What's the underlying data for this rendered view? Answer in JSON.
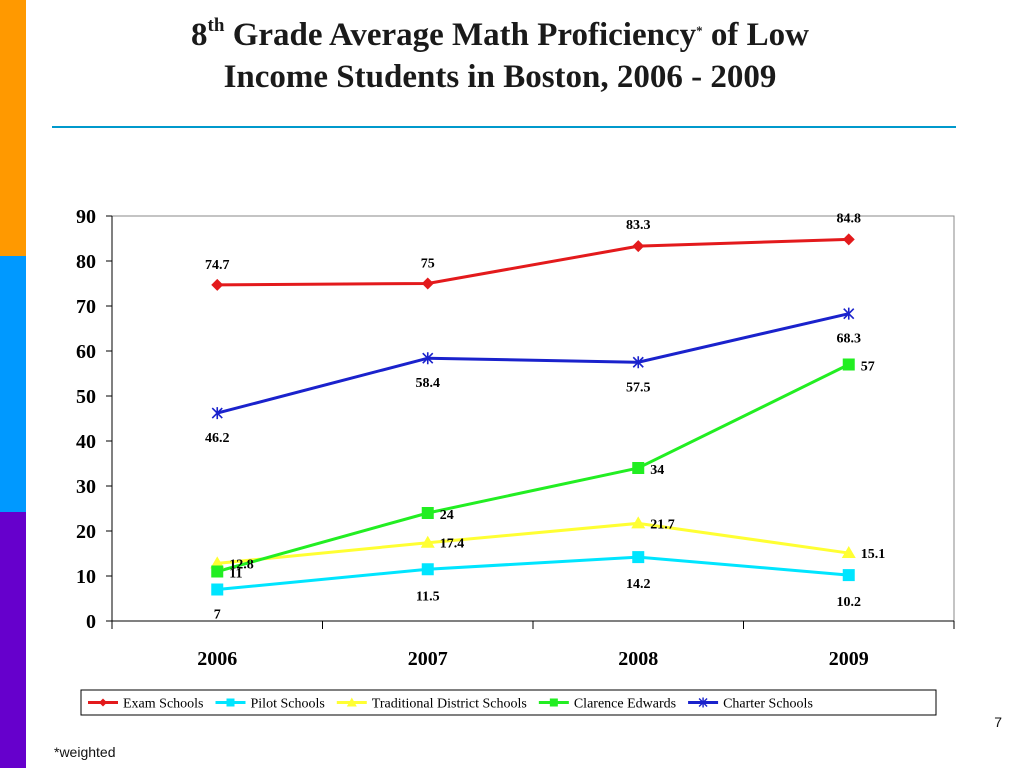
{
  "sidebar": {
    "colors": [
      "#FF9900",
      "#0099FF",
      "#6600CC"
    ]
  },
  "title": {
    "lead": "8",
    "th": "th",
    "mid": " Grade Average Math Proficiency",
    "asterisk": "*",
    "tail1": " of Low",
    "line2": "Income Students in Boston, 2006 - 2009"
  },
  "rule_color": "#0099CC",
  "chart_data": {
    "type": "line",
    "categories": [
      "2006",
      "2007",
      "2008",
      "2009"
    ],
    "ylim": [
      0,
      90
    ],
    "yticks": [
      "0",
      "10",
      "20",
      "30",
      "40",
      "50",
      "60",
      "70",
      "80",
      "90"
    ],
    "grid": false,
    "legend_position": "bottom",
    "series": [
      {
        "name": "Exam Schools",
        "values": [
          74.7,
          75,
          83.3,
          84.8
        ],
        "labels": [
          "74.7",
          "75",
          "83.3",
          "84.8"
        ],
        "color": "#E31A1C",
        "marker": "diamond"
      },
      {
        "name": "Pilot Schools",
        "values": [
          7,
          11.5,
          14.2,
          10.2
        ],
        "labels": [
          "7",
          "11.5",
          "14.2",
          "10.2"
        ],
        "color": "#00E5FF",
        "marker": "square"
      },
      {
        "name": "Traditional District Schools",
        "values": [
          12.8,
          17.4,
          21.7,
          15.1
        ],
        "labels": [
          "12.8",
          "17.4",
          "21.7",
          "15.1"
        ],
        "color": "#FFFF33",
        "marker": "triangle"
      },
      {
        "name": "Clarence Edwards",
        "values": [
          11,
          24,
          34,
          57
        ],
        "labels": [
          "11",
          "24",
          "34",
          "57"
        ],
        "color": "#22EE22",
        "marker": "square"
      },
      {
        "name": "Charter Schools",
        "values": [
          46.2,
          58.4,
          57.5,
          68.3
        ],
        "labels": [
          "46.2",
          "58.4",
          "57.5",
          "68.3"
        ],
        "color": "#1A22CC",
        "marker": "star"
      }
    ]
  },
  "slide_number": "7",
  "footnote": "*weighted"
}
